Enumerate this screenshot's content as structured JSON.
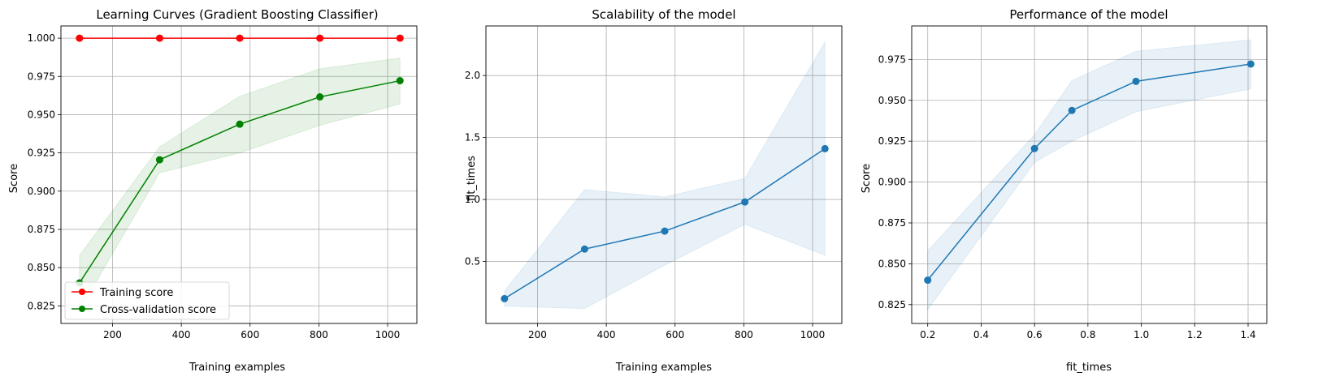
{
  "chart_data": [
    {
      "type": "line",
      "title": "Learning Curves (Gradient Boosting Classifier)",
      "xlabel": "Training examples",
      "ylabel": "Score",
      "xlim": [
        50,
        1085
      ],
      "ylim": [
        0.8135,
        1.008
      ],
      "xticks": [
        200,
        400,
        600,
        800,
        1000
      ],
      "yticks": [
        0.825,
        0.85,
        0.875,
        0.9,
        0.925,
        0.95,
        0.975,
        1.0
      ],
      "ytick_labels": [
        "0.825",
        "0.850",
        "0.875",
        "0.900",
        "0.925",
        "0.950",
        "0.975",
        "1.000"
      ],
      "grid": true,
      "legend": "lower-left",
      "x": [
        104,
        337,
        570,
        803,
        1036
      ],
      "series": [
        {
          "name": "Training score",
          "color": "#ff0000",
          "values": [
            1.0,
            1.0,
            1.0,
            1.0,
            1.0
          ],
          "lower": [
            1.0,
            1.0,
            1.0,
            1.0,
            1.0
          ],
          "upper": [
            1.0,
            1.0,
            1.0,
            1.0,
            1.0
          ]
        },
        {
          "name": "Cross-validation score",
          "color": "#008000",
          "values": [
            0.84,
            0.9205,
            0.9438,
            0.9616,
            0.9722
          ],
          "lower": [
            0.822,
            0.912,
            0.925,
            0.943,
            0.957
          ],
          "upper": [
            0.858,
            0.929,
            0.962,
            0.98,
            0.987
          ]
        }
      ]
    },
    {
      "type": "line",
      "title": "Scalability of the model",
      "xlabel": "Training examples",
      "ylabel": "fit_times",
      "xlim": [
        50,
        1085
      ],
      "ylim": [
        0.0,
        2.4
      ],
      "xticks": [
        200,
        400,
        600,
        800,
        1000
      ],
      "yticks": [
        0.5,
        1.0,
        1.5,
        2.0
      ],
      "ytick_labels": [
        "0.5",
        "1.0",
        "1.5",
        "2.0"
      ],
      "grid": true,
      "x": [
        104,
        337,
        570,
        803,
        1036
      ],
      "series": [
        {
          "color": "#1f77b4",
          "values": [
            0.2,
            0.6,
            0.745,
            0.98,
            1.41
          ],
          "lower": [
            0.14,
            0.12,
            0.47,
            0.8,
            0.55
          ],
          "upper": [
            0.26,
            1.08,
            1.02,
            1.17,
            2.27
          ]
        }
      ]
    },
    {
      "type": "line",
      "title": "Performance of the model",
      "xlabel": "fit_times",
      "ylabel": "Score",
      "xlim": [
        0.14,
        1.47
      ],
      "ylim": [
        0.8135,
        0.9955
      ],
      "xticks": [
        0.2,
        0.4,
        0.6,
        0.8,
        1.0,
        1.2,
        1.4
      ],
      "xtick_labels": [
        "0.2",
        "0.4",
        "0.6",
        "0.8",
        "1.0",
        "1.2",
        "1.4"
      ],
      "yticks": [
        0.825,
        0.85,
        0.875,
        0.9,
        0.925,
        0.95,
        0.975
      ],
      "ytick_labels": [
        "0.825",
        "0.850",
        "0.875",
        "0.900",
        "0.925",
        "0.950",
        "0.975"
      ],
      "grid": true,
      "x": [
        0.2,
        0.6,
        0.74,
        0.98,
        1.41
      ],
      "series": [
        {
          "color": "#1f77b4",
          "values": [
            0.84,
            0.9205,
            0.9438,
            0.9616,
            0.9722
          ],
          "lower": [
            0.822,
            0.912,
            0.925,
            0.943,
            0.957
          ],
          "upper": [
            0.858,
            0.929,
            0.962,
            0.98,
            0.987
          ]
        }
      ]
    }
  ]
}
